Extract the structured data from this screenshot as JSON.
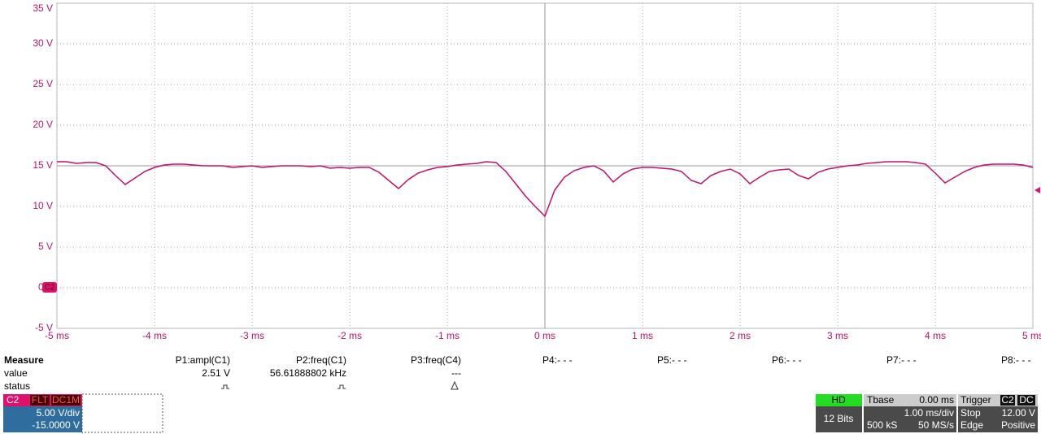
{
  "chart_data": {
    "type": "line",
    "x": [
      -5,
      -4.9,
      -4.8,
      -4.7,
      -4.6,
      -4.5,
      -4.4,
      -4.3,
      -4.2,
      -4.1,
      -4,
      -3.9,
      -3.8,
      -3.7,
      -3.6,
      -3.5,
      -3.4,
      -3.3,
      -3.2,
      -3.1,
      -3,
      -2.9,
      -2.8,
      -2.7,
      -2.6,
      -2.5,
      -2.4,
      -2.3,
      -2.2,
      -2.1,
      -2,
      -1.9,
      -1.8,
      -1.7,
      -1.6,
      -1.5,
      -1.4,
      -1.3,
      -1.2,
      -1.1,
      -1,
      -0.9,
      -0.8,
      -0.7,
      -0.6,
      -0.5,
      -0.4,
      -0.3,
      -0.2,
      -0.1,
      0,
      0.1,
      0.2,
      0.3,
      0.4,
      0.5,
      0.6,
      0.7,
      0.8,
      0.9,
      1,
      1.1,
      1.2,
      1.3,
      1.4,
      1.5,
      1.6,
      1.7,
      1.8,
      1.9,
      2,
      2.1,
      2.2,
      2.3,
      2.4,
      2.5,
      2.6,
      2.7,
      2.8,
      2.9,
      3,
      3.1,
      3.2,
      3.3,
      3.4,
      3.5,
      3.6,
      3.7,
      3.8,
      3.9,
      4,
      4.1,
      4.2,
      4.3,
      4.4,
      4.5,
      4.6,
      4.7,
      4.8,
      4.9,
      5
    ],
    "series": [
      {
        "color": "#c2106c",
        "values": [
          15.5,
          15.5,
          15.3,
          15.4,
          15.4,
          15.0,
          13.8,
          12.7,
          13.5,
          14.3,
          14.8,
          15.1,
          15.2,
          15.2,
          15.1,
          15.0,
          15.0,
          15.0,
          14.8,
          14.9,
          15.0,
          14.8,
          14.9,
          15.0,
          15.0,
          15.0,
          14.9,
          15.0,
          14.7,
          14.8,
          14.7,
          14.8,
          14.8,
          14.2,
          13.2,
          12.2,
          13.3,
          14.1,
          14.5,
          14.8,
          14.9,
          15.1,
          15.2,
          15.3,
          15.5,
          15.4,
          14.3,
          12.8,
          11.3,
          10.0,
          8.8,
          12.0,
          13.6,
          14.4,
          14.8,
          15.0,
          14.4,
          13.0,
          14.0,
          14.6,
          14.8,
          14.8,
          14.7,
          14.6,
          14.3,
          13.2,
          12.8,
          13.8,
          14.3,
          14.6,
          14.0,
          12.8,
          13.6,
          14.3,
          14.5,
          14.6,
          13.8,
          13.4,
          14.2,
          14.6,
          14.8,
          15.0,
          15.1,
          15.3,
          15.4,
          15.5,
          15.5,
          15.5,
          15.4,
          15.2,
          14.1,
          12.9,
          13.6,
          14.3,
          14.8,
          15.1,
          15.2,
          15.2,
          15.2,
          15.1,
          14.8
        ]
      }
    ],
    "xlim": [
      -5,
      5
    ],
    "ylim": [
      -5,
      35
    ],
    "xticks": [
      {
        "value": -5,
        "label": "-5 ms"
      },
      {
        "value": -4,
        "label": "-4 ms"
      },
      {
        "value": -3,
        "label": "-3 ms"
      },
      {
        "value": -2,
        "label": "-2 ms"
      },
      {
        "value": -1,
        "label": "-1 ms"
      },
      {
        "value": 0,
        "label": "0 ms"
      },
      {
        "value": 1,
        "label": "1 ms"
      },
      {
        "value": 2,
        "label": "2 ms"
      },
      {
        "value": 3,
        "label": "3 ms"
      },
      {
        "value": 4,
        "label": "4 ms"
      },
      {
        "value": 5,
        "label": "5 ms"
      }
    ],
    "yticks": [
      {
        "value": -5,
        "label": "-5 V"
      },
      {
        "value": 0,
        "label": "0 V"
      },
      {
        "value": 5,
        "label": "5 V"
      },
      {
        "value": 10,
        "label": "10 V"
      },
      {
        "value": 15,
        "label": "15 V"
      },
      {
        "value": 20,
        "label": "20 V"
      },
      {
        "value": 25,
        "label": "25 V"
      },
      {
        "value": 30,
        "label": "30 V"
      },
      {
        "value": 35,
        "label": "35 V"
      }
    ],
    "grid": true,
    "trigger_level": 12
  },
  "measure": {
    "title": "Measure",
    "row_labels": [
      "value",
      "status"
    ],
    "columns": [
      {
        "header": "P1:ampl(C1)",
        "value": "2.51 V"
      },
      {
        "header": "P2:freq(C1)",
        "value": "56.61888802 kHz"
      },
      {
        "header": "P3:freq(C4)",
        "value": "---"
      },
      {
        "header": "P4:- - -"
      },
      {
        "header": "P5:- - -"
      },
      {
        "header": "P6:- - -"
      },
      {
        "header": "P7:- - -"
      },
      {
        "header": "P8:- - -"
      }
    ]
  },
  "channel": {
    "name": "C2",
    "filter": "FLT",
    "coupling": "DC1M",
    "scale": "5.00 V/div",
    "offset": "-15.0000 V"
  },
  "acquisition": {
    "mode": "HD",
    "bits": "12 Bits"
  },
  "timebase": {
    "title": "Tbase",
    "delay": "0.00 ms",
    "scale": "1.00 ms/div",
    "points": "500 kS",
    "rate": "50 MS/s"
  },
  "trigger": {
    "title": "Trigger",
    "source": "C2",
    "coupling": "DC",
    "state": "Stop",
    "level": "12.00 V",
    "type": "Edge",
    "slope": "Positive"
  }
}
